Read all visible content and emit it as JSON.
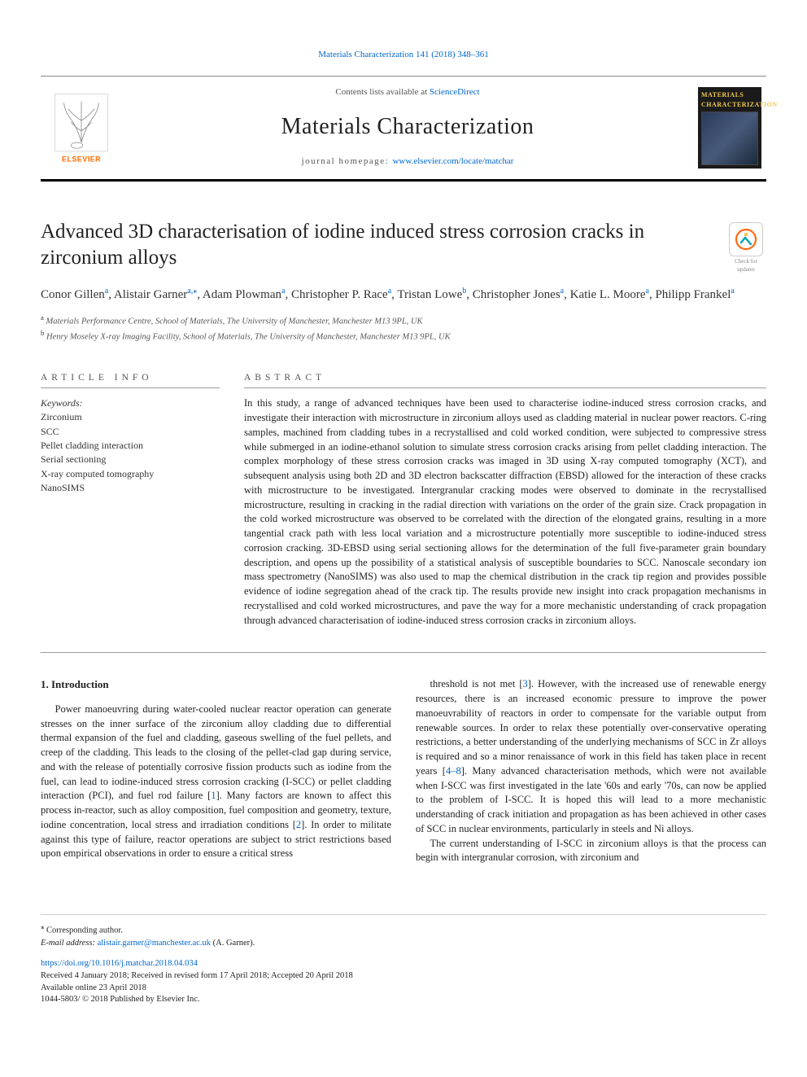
{
  "crumb": "Materials Characterization 141 (2018) 348–361",
  "masthead": {
    "contents_pre": "Contents lists available at ",
    "contents_link": "ScienceDirect",
    "journal": "Materials Characterization",
    "homepage_pre": "journal homepage: ",
    "homepage_link": "www.elsevier.com/locate/matchar",
    "cover_label": "MATERIALS CHARACTERIZATION",
    "publisher_label": "ELSEVIER"
  },
  "title": "Advanced 3D characterisation of iodine induced stress corrosion cracks in zirconium alloys",
  "check_badge": {
    "caption": "Check for updates"
  },
  "authors_html_parts": [
    {
      "name": "Conor Gillen",
      "sup": "a"
    },
    {
      "name": "Alistair Garner",
      "sup": "a,⁎"
    },
    {
      "name": "Adam Plowman",
      "sup": "a"
    },
    {
      "name": "Christopher P. Race",
      "sup": "a"
    },
    {
      "name": "Tristan Lowe",
      "sup": "b"
    },
    {
      "name": "Christopher Jones",
      "sup": "a"
    },
    {
      "name": "Katie L. Moore",
      "sup": "a"
    },
    {
      "name": "Philipp Frankel",
      "sup": "a"
    }
  ],
  "affiliations": [
    {
      "mark": "a",
      "text": "Materials Performance Centre, School of Materials, The University of Manchester, Manchester M13 9PL, UK"
    },
    {
      "mark": "b",
      "text": "Henry Moseley X-ray Imaging Facility, School of Materials, The University of Manchester, Manchester M13 9PL, UK"
    }
  ],
  "info": {
    "head": "ARTICLE INFO",
    "kw_label": "Keywords:",
    "keywords": [
      "Zirconium",
      "SCC",
      "Pellet cladding interaction",
      "Serial sectioning",
      "X-ray computed tomography",
      "NanoSIMS"
    ]
  },
  "abstract": {
    "head": "ABSTRACT",
    "text": "In this study, a range of advanced techniques have been used to characterise iodine-induced stress corrosion cracks, and investigate their interaction with microstructure in zirconium alloys used as cladding material in nuclear power reactors. C-ring samples, machined from cladding tubes in a recrystallised and cold worked condition, were subjected to compressive stress while submerged in an iodine-ethanol solution to simulate stress corrosion cracks arising from pellet cladding interaction. The complex morphology of these stress corrosion cracks was imaged in 3D using X-ray computed tomography (XCT), and subsequent analysis using both 2D and 3D electron backscatter diffraction (EBSD) allowed for the interaction of these cracks with microstructure to be investigated. Intergranular cracking modes were observed to dominate in the recrystallised microstructure, resulting in cracking in the radial direction with variations on the order of the grain size. Crack propagation in the cold worked microstructure was observed to be correlated with the direction of the elongated grains, resulting in a more tangential crack path with less local variation and a microstructure potentially more susceptible to iodine-induced stress corrosion cracking. 3D-EBSD using serial sectioning allows for the determination of the full five-parameter grain boundary description, and opens up the possibility of a statistical analysis of susceptible boundaries to SCC. Nanoscale secondary ion mass spectrometry (NanoSIMS) was also used to map the chemical distribution in the crack tip region and provides possible evidence of iodine segregation ahead of the crack tip. The results provide new insight into crack propagation mechanisms in recrystallised and cold worked microstructures, and pave the way for a more mechanistic understanding of crack propagation through advanced characterisation of iodine-induced stress corrosion cracks in zirconium alloys."
  },
  "section1": {
    "head": "1.  Introduction",
    "col1": "Power manoeuvring during water-cooled nuclear reactor operation can generate stresses on the inner surface of the zirconium alloy cladding due to differential thermal expansion of the fuel and cladding, gaseous swelling of the fuel pellets, and creep of the cladding. This leads to the closing of the pellet-clad gap during service, and with the release of potentially corrosive fission products such as iodine from the fuel, can lead to iodine-induced stress corrosion cracking (I-SCC) or pellet cladding interaction (PCI), and fuel rod failure [1]. Many factors are known to affect this process in-reactor, such as alloy composition, fuel composition and geometry, texture, iodine concentration, local stress and irradiation conditions [2]. In order to militate against this type of failure, reactor operations are subject to strict restrictions based upon empirical observations in order to ensure a critical stress",
    "col2a": "threshold is not met [3]. However, with the increased use of renewable energy resources, there is an increased economic pressure to improve the power manoeuvrability of reactors in order to compensate for the variable output from renewable sources. In order to relax these potentially over-conservative operating restrictions, a better understanding of the underlying mechanisms of SCC in Zr alloys is required and so a minor renaissance of work in this field has taken place in recent years [4–8]. Many advanced characterisation methods, which were not available when I-SCC was first investigated in the late '60s and early '70s, can now be applied to the problem of I-SCC. It is hoped this will lead to a more mechanistic understanding of crack initiation and propagation as has been achieved in other cases of SCC in nuclear environments, particularly in steels and Ni alloys.",
    "col2b": "The current understanding of I-SCC in zirconium alloys is that the process can begin with intergranular corrosion, with zirconium and"
  },
  "footnotes": {
    "corr_mark": "⁎",
    "corr_label": "Corresponding author.",
    "email_label": "E-mail address: ",
    "email": "alistair.garner@manchester.ac.uk",
    "email_paren": " (A. Garner)."
  },
  "footer": {
    "doi": "https://doi.org/10.1016/j.matchar.2018.04.034",
    "received": "Received 4 January 2018; Received in revised form 17 April 2018; Accepted 20 April 2018",
    "online": "Available online 23 April 2018",
    "copyright": "1044-5803/ © 2018 Published by Elsevier Inc."
  },
  "colors": {
    "link": "#0066cc",
    "rule": "#999999",
    "badge_orange": "#ff6a13",
    "badge_teal": "#00a2b0"
  }
}
